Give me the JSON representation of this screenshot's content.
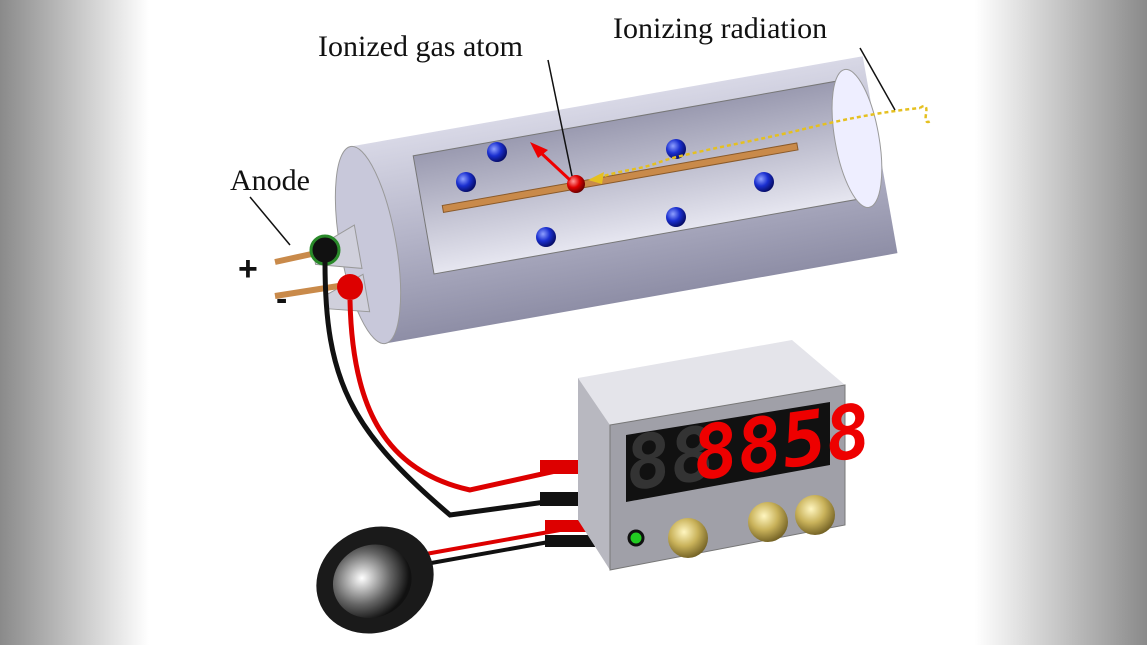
{
  "labels": {
    "ionized_gas_atom": "Ionized gas atom",
    "ionizing_radiation": "Ionizing radiation",
    "anode": "Anode",
    "plus": "+",
    "minus": "-"
  },
  "display": {
    "dim_digits": "88",
    "lit_digits": "8858"
  }
}
